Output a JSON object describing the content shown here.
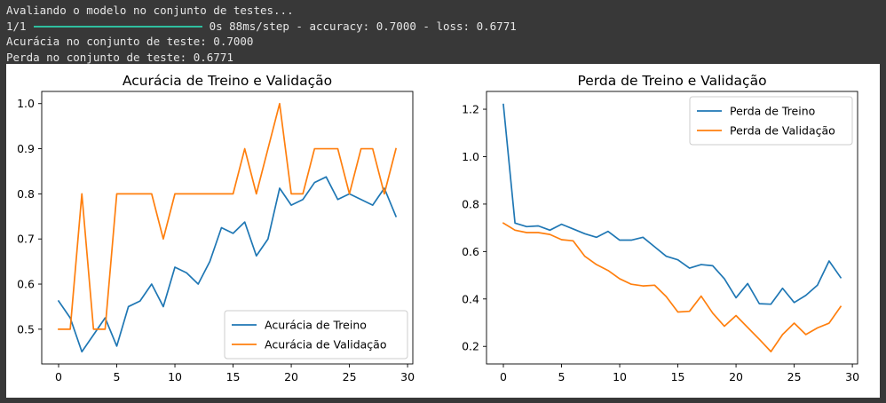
{
  "console": {
    "line1": "Avaliando o modelo no conjunto de testes...",
    "step": "1/1",
    "step_stats": "0s 88ms/step - accuracy: 0.7000 - loss: 0.6771",
    "line3": "Acurácia no conjunto de teste: 0.7000",
    "line4": "Perda no conjunto de teste: 0.6771"
  },
  "chart_data": [
    {
      "type": "line",
      "title": "Acurácia de Treino e Validação",
      "xlabel": "",
      "ylabel": "",
      "x": [
        0,
        1,
        2,
        3,
        4,
        5,
        6,
        7,
        8,
        9,
        10,
        11,
        12,
        13,
        14,
        15,
        16,
        17,
        18,
        19,
        20,
        21,
        22,
        23,
        24,
        25,
        26,
        27,
        28,
        29
      ],
      "xlim": [
        -1.45,
        30.45
      ],
      "ylim": [
        0.423,
        1.027
      ],
      "xticks": [
        0,
        5,
        10,
        15,
        20,
        25,
        30
      ],
      "yticks": [
        0.5,
        0.6,
        0.7,
        0.8,
        0.9,
        1.0
      ],
      "ytick_labels": [
        "0.5",
        "0.6",
        "0.7",
        "0.8",
        "0.9",
        "1.0"
      ],
      "legend_loc": "lower-right",
      "series": [
        {
          "name": "Acurácia de Treino",
          "color": "#1f77b4",
          "values": [
            0.5625,
            0.525,
            0.45,
            0.4875,
            0.525,
            0.4625,
            0.55,
            0.5625,
            0.6,
            0.55,
            0.6375,
            0.625,
            0.6,
            0.65,
            0.725,
            0.7125,
            0.7375,
            0.6625,
            0.7,
            0.8125,
            0.775,
            0.7875,
            0.825,
            0.8375,
            0.7875,
            0.8,
            0.7875,
            0.775,
            0.8125,
            0.75
          ]
        },
        {
          "name": "Acurácia de Validação",
          "color": "#ff7f0e",
          "values": [
            0.5,
            0.5,
            0.8,
            0.5,
            0.5,
            0.8,
            0.8,
            0.8,
            0.8,
            0.7,
            0.8,
            0.8,
            0.8,
            0.8,
            0.8,
            0.8,
            0.9,
            0.8,
            0.9,
            1.0,
            0.8,
            0.8,
            0.9,
            0.9,
            0.9,
            0.8,
            0.9,
            0.9,
            0.8,
            0.9
          ]
        }
      ]
    },
    {
      "type": "line",
      "title": "Perda de Treino e Validação",
      "xlabel": "",
      "ylabel": "",
      "x": [
        0,
        1,
        2,
        3,
        4,
        5,
        6,
        7,
        8,
        9,
        10,
        11,
        12,
        13,
        14,
        15,
        16,
        17,
        18,
        19,
        20,
        21,
        22,
        23,
        24,
        25,
        26,
        27,
        28,
        29
      ],
      "xlim": [
        -1.45,
        30.45
      ],
      "ylim": [
        0.126,
        1.275
      ],
      "xticks": [
        0,
        5,
        10,
        15,
        20,
        25,
        30
      ],
      "yticks": [
        0.2,
        0.4,
        0.6,
        0.8,
        1.0,
        1.2
      ],
      "ytick_labels": [
        "0.2",
        "0.4",
        "0.6",
        "0.8",
        "1.0",
        "1.2"
      ],
      "legend_loc": "upper-right",
      "series": [
        {
          "name": "Perda de Treino",
          "color": "#1f77b4",
          "values": [
            1.22,
            0.72,
            0.705,
            0.708,
            0.69,
            0.715,
            0.695,
            0.675,
            0.66,
            0.685,
            0.648,
            0.648,
            0.66,
            0.62,
            0.58,
            0.565,
            0.53,
            0.545,
            0.54,
            0.485,
            0.405,
            0.465,
            0.38,
            0.378,
            0.445,
            0.385,
            0.415,
            0.458,
            0.56,
            0.49
          ]
        },
        {
          "name": "Perda de Validação",
          "color": "#ff7f0e",
          "values": [
            0.72,
            0.69,
            0.68,
            0.68,
            0.672,
            0.65,
            0.645,
            0.58,
            0.545,
            0.52,
            0.485,
            0.462,
            0.455,
            0.458,
            0.41,
            0.345,
            0.348,
            0.412,
            0.34,
            0.285,
            0.33,
            0.28,
            0.23,
            0.178,
            0.25,
            0.298,
            0.25,
            0.278,
            0.298,
            0.368
          ]
        }
      ]
    }
  ]
}
